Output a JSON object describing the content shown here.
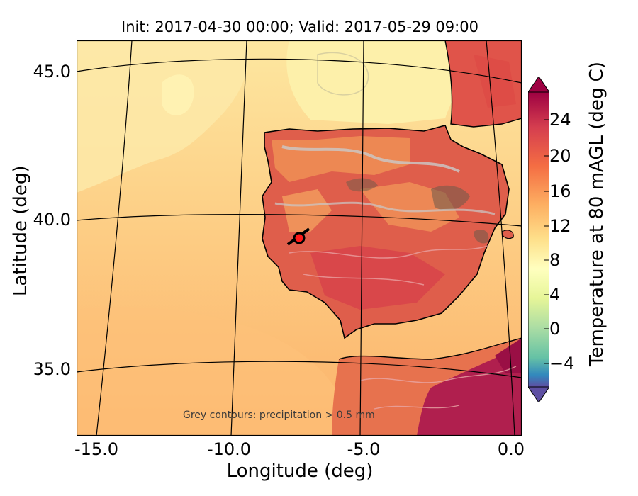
{
  "header": {
    "title": "Init: 2017-04-30 00:00; Valid: 2017-05-29 09:00"
  },
  "axes": {
    "xlabel": "Longitude (deg)",
    "ylabel": "Latitude (deg)",
    "xticks": [
      "-15.0",
      "-10.0",
      "-5.0",
      "0.0"
    ],
    "yticks": [
      "45.0",
      "40.0",
      "35.0"
    ]
  },
  "colorbar": {
    "label": "Temperature at 80 mAGL (deg C)",
    "ticks": [
      "24",
      "20",
      "16",
      "12",
      "8",
      "4",
      "0",
      "−4"
    ],
    "range": [
      -6,
      27
    ],
    "extend": "both",
    "colormap": "Spectral_r"
  },
  "map": {
    "lon_range": [
      -16,
      0.2
    ],
    "lat_range": [
      32.8,
      46
    ],
    "site_marker_color": "#ff1a1a",
    "land_color_hot": "#dd4a46",
    "sea_color": "#fdc37a"
  },
  "annotation": {
    "note": "Grey contours: precipitation > 0.5 mm"
  }
}
